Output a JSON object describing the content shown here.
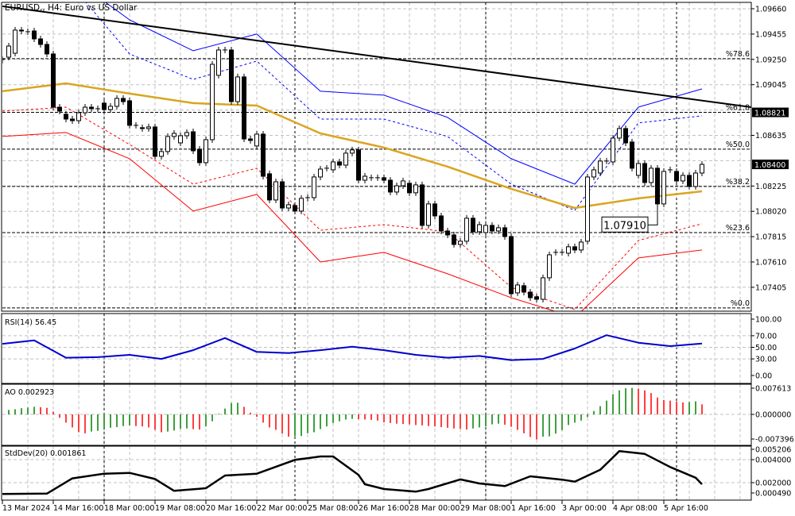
{
  "window": {
    "title": "EURUSD,, H4:  Euro vs US Dollar"
  },
  "chart_data": {
    "type": "candlestick",
    "symbol": "EURUSD",
    "timeframe": "H4",
    "colors": {
      "bull_body": "#ffffff",
      "bear_body": "#000000",
      "candle_outline": "#000000",
      "grid": "#c0c0c0",
      "moving_average": "#daa520",
      "upper_band": "#0000ff",
      "lower_band": "#ff0000",
      "rsi": "#0000cc",
      "ao_up": "#008000",
      "ao_down": "#ff0000",
      "stddev": "#000000"
    },
    "price_axis": {
      "range": [
        1.0723,
        1.0972
      ],
      "ticks": [
        "1.09660",
        "1.09455",
        "1.09250",
        "1.09045",
        "1.08635",
        "1.08225",
        "1.08020",
        "1.07815",
        "1.07610",
        "1.07405"
      ],
      "hidden_ticks": [
        "1.08840",
        "1.08430"
      ],
      "fib_price_label": "1.08821",
      "current_price_label": "1.08400"
    },
    "time_axis": {
      "labels": [
        "13 Mar 2024",
        "14 Mar 16:00",
        "18 Mar 00:00",
        "19 Mar 08:00",
        "20 Mar 16:00",
        "22 Mar 00:00",
        "25 Mar 08:00",
        "26 Mar 16:00",
        "28 Mar 00:00",
        "29 Mar 08:00",
        "1 Apr 16:00",
        "3 Apr 00:00",
        "4 Apr 08:00",
        "5 Apr 16:00"
      ]
    },
    "day_separators_bars": [
      16,
      46,
      76,
      106
    ],
    "candles_open_close": [
      [
        1.09243,
        1.09249
      ],
      [
        1.09268,
        1.09358
      ],
      [
        1.093,
        1.09487
      ],
      [
        1.09487,
        1.0948
      ],
      [
        1.09474,
        1.09474
      ],
      [
        1.0948,
        1.09416
      ],
      [
        1.09416,
        1.09371
      ],
      [
        1.09371,
        1.09294
      ],
      [
        1.09294,
        1.08863
      ],
      [
        1.08863,
        1.08831
      ],
      [
        1.08806,
        1.08767
      ],
      [
        1.08767,
        1.08754
      ],
      [
        1.08754,
        1.08818
      ],
      [
        1.08818,
        1.08863
      ],
      [
        1.08863,
        1.08851
      ],
      [
        1.08851,
        1.08851
      ],
      [
        1.08896,
        1.08844
      ],
      [
        1.08844,
        1.0887
      ],
      [
        1.0887,
        1.08934
      ],
      [
        1.08934,
        1.08908
      ],
      [
        1.08915,
        1.08716
      ],
      [
        1.08716,
        1.08716
      ],
      [
        1.08697,
        1.0869
      ],
      [
        1.0869,
        1.08703
      ],
      [
        1.08703,
        1.08465
      ],
      [
        1.08465,
        1.08504
      ],
      [
        1.08504,
        1.08626
      ],
      [
        1.08626,
        1.08651
      ],
      [
        1.08574,
        1.08632
      ],
      [
        1.08632,
        1.08658
      ],
      [
        1.08664,
        1.0851
      ],
      [
        1.08523,
        1.08414
      ],
      [
        1.08414,
        1.086
      ],
      [
        1.086,
        1.0921
      ],
      [
        1.09121,
        1.09326
      ],
      [
        1.09326,
        1.09326
      ],
      [
        1.09326,
        1.08908
      ],
      [
        1.08908,
        1.09108
      ],
      [
        1.09108,
        1.08606
      ],
      [
        1.08606,
        1.08594
      ],
      [
        1.08549,
        1.08645
      ],
      [
        1.08645,
        1.08304
      ],
      [
        1.08324,
        1.08112
      ],
      [
        1.08112,
        1.08259
      ],
      [
        1.08259,
        1.08047
      ],
      [
        1.08047,
        1.08073
      ],
      [
        1.08067,
        1.08022
      ],
      [
        1.08022,
        1.08125
      ],
      [
        1.08125,
        1.08131
      ],
      [
        1.08131,
        1.08298
      ],
      [
        1.08298,
        1.08362
      ],
      [
        1.08369,
        1.08369
      ],
      [
        1.08356,
        1.0842
      ],
      [
        1.0842,
        1.08394
      ],
      [
        1.08394,
        1.08491
      ],
      [
        1.08491,
        1.08517
      ],
      [
        1.08517,
        1.08272
      ],
      [
        1.08272,
        1.08304
      ],
      [
        1.08292,
        1.08292
      ],
      [
        1.08292,
        1.08292
      ],
      [
        1.08292,
        1.08272
      ],
      [
        1.08272,
        1.08176
      ],
      [
        1.08176,
        1.08227
      ],
      [
        1.08227,
        1.08266
      ],
      [
        1.08247,
        1.0817
      ],
      [
        1.0817,
        1.08234
      ],
      [
        1.08234,
        1.07906
      ],
      [
        1.07906,
        1.0808
      ],
      [
        1.0808,
        1.07983
      ],
      [
        1.07983,
        1.07861
      ],
      [
        1.07861,
        1.07829
      ],
      [
        1.07829,
        1.07752
      ],
      [
        1.07752,
        1.07778
      ],
      [
        1.07778,
        1.07964
      ],
      [
        1.07964,
        1.07855
      ],
      [
        1.07855,
        1.07912
      ],
      [
        1.07848,
        1.07906
      ],
      [
        1.07906,
        1.07861
      ],
      [
        1.07861,
        1.07887
      ],
      [
        1.07887,
        1.07816
      ],
      [
        1.07816,
        1.07353
      ],
      [
        1.0736,
        1.07424
      ],
      [
        1.07418,
        1.07366
      ],
      [
        1.07366,
        1.07321
      ],
      [
        1.07328,
        1.07308
      ],
      [
        1.07308,
        1.07482
      ],
      [
        1.07482,
        1.07668
      ],
      [
        1.07688,
        1.07688
      ],
      [
        1.07688,
        1.07688
      ],
      [
        1.07681,
        1.07733
      ],
      [
        1.07733,
        1.07707
      ],
      [
        1.07707,
        1.07771
      ],
      [
        1.07778,
        1.08298
      ],
      [
        1.08298,
        1.08356
      ],
      [
        1.0833,
        1.08427
      ],
      [
        1.08427,
        1.08427
      ],
      [
        1.0842,
        1.08613
      ],
      [
        1.08613,
        1.0869
      ],
      [
        1.0869,
        1.08574
      ],
      [
        1.08581,
        1.08369
      ],
      [
        1.08311,
        1.08407
      ],
      [
        1.08407,
        1.08253
      ],
      [
        1.08253,
        1.08369
      ],
      [
        1.08369,
        1.0808
      ],
      [
        1.0808,
        1.08343
      ],
      [
        1.08356,
        1.08356
      ],
      [
        1.08343,
        1.08266
      ],
      [
        1.08266,
        1.08311
      ],
      [
        1.08311,
        1.08221
      ],
      [
        1.08221,
        1.0833
      ],
      [
        1.0833,
        1.084
      ]
    ],
    "annotation": {
      "text": "1.07910",
      "bar": 103,
      "price": 1.0791
    },
    "trendline": {
      "start": {
        "bar": 0,
        "price": 1.0968
      },
      "end": {
        "bar": 117.75,
        "price": 1.08863
      }
    },
    "fibonacci": [
      {
        "label": "%78.6",
        "price": 1.09256
      },
      {
        "label": "%61.8",
        "price": 1.08821
      },
      {
        "label": "%50.0",
        "price": 1.08523
      },
      {
        "label": "%38.2",
        "price": 1.08221
      },
      {
        "label": "%23.6",
        "price": 1.07848
      },
      {
        "label": "%0.0",
        "price": 1.07238
      }
    ],
    "moving_average": [
      [
        0,
        1.08992
      ],
      [
        10,
        1.09056
      ],
      [
        20,
        1.08973
      ],
      [
        30,
        1.08896
      ],
      [
        40,
        1.08876
      ],
      [
        50,
        1.08651
      ],
      [
        60,
        1.08536
      ],
      [
        70,
        1.08382
      ],
      [
        80,
        1.08202
      ],
      [
        90,
        1.08047
      ],
      [
        100,
        1.08125
      ],
      [
        110,
        1.08182
      ]
    ],
    "upper_band_outer": [
      [
        16,
        1.0972
      ],
      [
        20,
        1.0957
      ],
      [
        30,
        1.0932
      ],
      [
        40,
        1.09455
      ],
      [
        50,
        1.08992
      ],
      [
        60,
        1.0896
      ],
      [
        70,
        1.0878
      ],
      [
        80,
        1.08446
      ],
      [
        90,
        1.0824
      ],
      [
        100,
        1.08864
      ],
      [
        110,
        1.09011
      ]
    ],
    "upper_band_inner": [
      [
        13,
        1.0972
      ],
      [
        20,
        1.09294
      ],
      [
        30,
        1.09088
      ],
      [
        40,
        1.09236
      ],
      [
        50,
        1.08767
      ],
      [
        60,
        1.08767
      ],
      [
        70,
        1.08626
      ],
      [
        80,
        1.0824
      ],
      [
        90,
        1.08028
      ],
      [
        100,
        1.08735
      ],
      [
        110,
        1.08793
      ]
    ],
    "lower_band_inner": [
      [
        0,
        1.08831
      ],
      [
        10,
        1.08863
      ],
      [
        20,
        1.08561
      ],
      [
        30,
        1.0824
      ],
      [
        40,
        1.08369
      ],
      [
        50,
        1.07867
      ],
      [
        60,
        1.07912
      ],
      [
        70,
        1.07855
      ],
      [
        80,
        1.07405
      ],
      [
        90,
        1.07225
      ],
      [
        100,
        1.07784
      ],
      [
        110,
        1.07919
      ]
    ],
    "lower_band_outer": [
      [
        0,
        1.08626
      ],
      [
        10,
        1.08658
      ],
      [
        20,
        1.08446
      ],
      [
        30,
        1.08022
      ],
      [
        40,
        1.08157
      ],
      [
        50,
        1.0761
      ],
      [
        60,
        1.07688
      ],
      [
        70,
        1.07514
      ],
      [
        80,
        1.07321
      ],
      [
        90,
        1.07161
      ],
      [
        100,
        1.07643
      ],
      [
        110,
        1.07707
      ]
    ],
    "rsi": {
      "label": "RSI(14) 56.45",
      "ticks": [
        "100.00",
        "70.00",
        "50.00",
        "30.00",
        "0.00"
      ],
      "levels": [
        70,
        50,
        30
      ],
      "values": [
        [
          0,
          56
        ],
        [
          5,
          62
        ],
        [
          10,
          32
        ],
        [
          15,
          33
        ],
        [
          20,
          37
        ],
        [
          25,
          30
        ],
        [
          30,
          45
        ],
        [
          35,
          66
        ],
        [
          40,
          42
        ],
        [
          45,
          40
        ],
        [
          50,
          45
        ],
        [
          55,
          51
        ],
        [
          60,
          45
        ],
        [
          65,
          37
        ],
        [
          70,
          32
        ],
        [
          75,
          35
        ],
        [
          80,
          28
        ],
        [
          85,
          30
        ],
        [
          90,
          48
        ],
        [
          95,
          71
        ],
        [
          100,
          58
        ],
        [
          105,
          52
        ],
        [
          110,
          56.45
        ]
      ]
    },
    "ao": {
      "label": "AO 0.002923",
      "ticks": [
        "0.007613",
        "0.000000",
        "-0.007396"
      ],
      "values": [
        null,
        0.0013,
        0.0015,
        0.0018,
        0.002,
        0.0022,
        0.0021,
        0.0019,
        0.0008,
        -0.001,
        -0.0024,
        -0.0038,
        -0.0052,
        -0.0055,
        -0.005,
        -0.0048,
        -0.0042,
        -0.0039,
        -0.0037,
        -0.0034,
        -0.0032,
        -0.0034,
        -0.0035,
        -0.0038,
        -0.0045,
        -0.0052,
        -0.005,
        -0.0047,
        -0.0042,
        -0.0041,
        -0.0043,
        -0.0044,
        -0.0035,
        -0.002,
        0.0002,
        0.0017,
        0.0033,
        0.0034,
        0.0022,
        0.0005,
        -0.0007,
        -0.0024,
        -0.0038,
        -0.0045,
        -0.0056,
        -0.0065,
        -0.0064,
        -0.0063,
        -0.0055,
        -0.0052,
        -0.0043,
        -0.0035,
        -0.0025,
        -0.002,
        -0.0015,
        -0.0013,
        -0.0014,
        -0.0015,
        -0.0016,
        -0.0018,
        -0.0023,
        -0.0025,
        -0.0027,
        -0.0028,
        -0.0029,
        -0.0031,
        -0.0032,
        -0.0034,
        -0.0035,
        -0.0037,
        -0.0039,
        -0.0041,
        -0.0042,
        -0.0044,
        -0.0041,
        -0.0038,
        -0.0035,
        -0.0029,
        -0.0027,
        -0.003,
        -0.0036,
        -0.0045,
        -0.0055,
        -0.0066,
        -0.0073,
        -0.0065,
        -0.0064,
        -0.0056,
        -0.0046,
        -0.0031,
        -0.0024,
        -0.0018,
        -0.0008,
        0.001,
        0.0024,
        0.004,
        0.0059,
        0.007,
        0.0076,
        0.0077,
        0.0075,
        0.007,
        0.0062,
        0.0049,
        0.0042,
        0.004,
        0.0038,
        0.0035,
        0.0036,
        0.0038,
        0.002923
      ]
    },
    "stddev": {
      "label": "StdDev(20) 0.001861",
      "ticks": [
        "0.005206",
        "0.004000",
        "0.002000",
        "0.000490"
      ],
      "values": [
        [
          0,
          0.00101
        ],
        [
          7,
          0.00105
        ],
        [
          11,
          0.00237
        ],
        [
          16,
          0.00278
        ],
        [
          20,
          0.00285
        ],
        [
          24,
          0.00232
        ],
        [
          27,
          0.00129
        ],
        [
          32,
          0.00152
        ],
        [
          35,
          0.00262
        ],
        [
          40,
          0.00278
        ],
        [
          46,
          0.00398
        ],
        [
          50,
          0.00428
        ],
        [
          52,
          0.00428
        ],
        [
          56,
          0.00267
        ],
        [
          57,
          0.00186
        ],
        [
          60,
          0.00145
        ],
        [
          65,
          0.00122
        ],
        [
          67,
          0.00145
        ],
        [
          72,
          0.00228
        ],
        [
          75,
          0.00193
        ],
        [
          79,
          0.0017
        ],
        [
          83,
          0.00255
        ],
        [
          88,
          0.00226
        ],
        [
          90,
          0.00209
        ],
        [
          94,
          0.00312
        ],
        [
          97,
          0.00474
        ],
        [
          101,
          0.0045
        ],
        [
          105,
          0.00336
        ],
        [
          109,
          0.00243
        ],
        [
          110,
          0.001861
        ]
      ]
    }
  }
}
